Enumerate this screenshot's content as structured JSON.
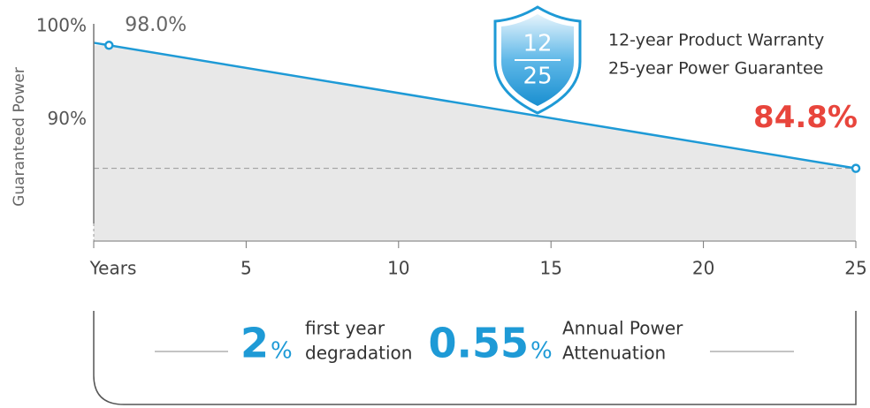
{
  "chart_data": {
    "type": "area",
    "y_label": "Guaranteed Power",
    "x": [
      0.5,
      25
    ],
    "series": [
      {
        "name": "Guaranteed Power",
        "color": "#1e9ad6",
        "area_color": "#e8e8e8",
        "values": [
          98.0,
          84.8
        ],
        "value_labels": [
          "98.0%",
          "84.8%"
        ],
        "value_label_colors": [
          "#666666",
          "#e8453c"
        ]
      }
    ],
    "xlim": [
      0,
      25
    ],
    "xticks": [
      {
        "value": 0,
        "label": "Years"
      },
      5,
      10,
      15,
      20,
      25
    ],
    "ylim": [
      77,
      100.3
    ],
    "yticks": [
      {
        "value": 100,
        "label": "100%"
      },
      {
        "value": 90,
        "label": "90%"
      }
    ],
    "badge": {
      "top": "12",
      "bottom": "25",
      "lines": [
        "12-year Product  Warranty",
        "25-year Power Guarantee"
      ]
    },
    "annotations": [
      {
        "value": "2",
        "unit": "%",
        "lines": [
          "first year",
          "degradation"
        ]
      },
      {
        "value": "0.55",
        "unit": "%",
        "lines": [
          "Annual Power",
          "Attenuation"
        ]
      }
    ]
  }
}
